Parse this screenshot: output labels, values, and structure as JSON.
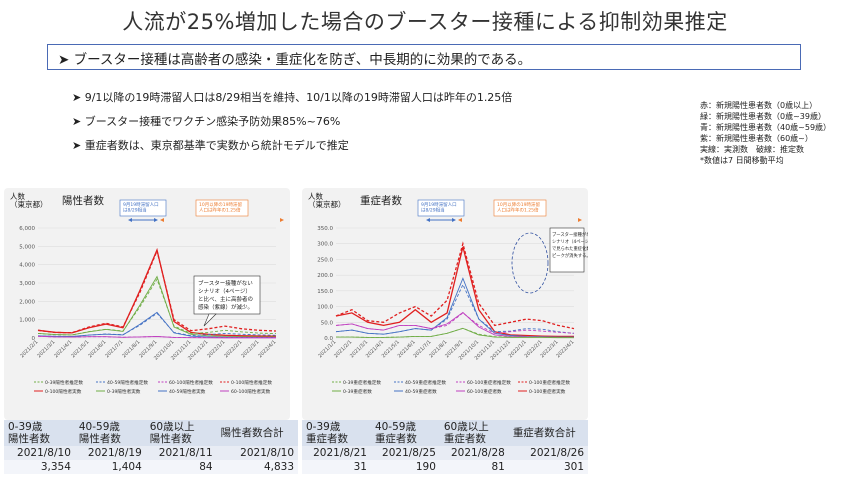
{
  "title": "人流が25%増加した場合のブースター接種による抑制効果推定",
  "banner": "➤ ブースター接種は高齢者の感染・重症化を防ぎ、中長期的に効果的である。",
  "bullets": [
    "9/1以降の19時滞留人口は8/29相当を維持、10/1以降の19時滞留人口は昨年の1.25倍",
    "ブースター接種でワクチン感染予防効果85%~76%",
    "重症者数は、東京都基準で実数から統計モデルで推定"
  ],
  "legend_note": [
    "赤：新規陽性患者数（0歳以上）",
    "緑：新規陽性患者数（0歳~39歳）",
    "青：新規陽性患者数（40歳~59歳）",
    "紫：新規陽性患者数（60歳~）",
    "実線：実測数　破線：推定数",
    "*数値は7 日間移動平均"
  ],
  "colors": {
    "red": "#e02020",
    "green": "#70ad47",
    "blue": "#4472c4",
    "purple": "#c040c0",
    "orange": "#ed7d31"
  },
  "chart_data": [
    {
      "type": "line",
      "title": "陽性者数",
      "ylabel": "人数\n（東京都）",
      "ylim": [
        0,
        6000
      ],
      "yticks": [
        "6,000",
        "5,000",
        "4,000",
        "3,000",
        "2,000",
        "1,000",
        "0"
      ],
      "x": [
        "2021/2/1",
        "2021/3/1",
        "2021/4/1",
        "2021/5/1",
        "2021/6/1",
        "2021/7/1",
        "2021/8/1",
        "2021/9/1",
        "2021/10/1",
        "2021/11/1",
        "2021/12/1",
        "2022/1/1",
        "2022/2/1",
        "2022/3/1",
        "2022/4/1"
      ],
      "annotations": [
        {
          "text": "9月19時滞留人口\nは8/29相当",
          "color": "#4472c4"
        },
        {
          "text": "10月以降の19時滞留\n人口は昨年の1.25倍",
          "color": "#ed7d31"
        },
        {
          "text": "ブースター接種がない\nシナリオ（4ページ）\nと比べ、主に高齢者の\n感染（紫線）が減少。",
          "color": "#222"
        }
      ],
      "series": [
        {
          "name": "0-100陽性者実数",
          "color": "#e02020",
          "dashed": false,
          "values": [
            420,
            310,
            280,
            560,
            760,
            560,
            2600,
            4800,
            900,
            300,
            200,
            150,
            120,
            110,
            100
          ]
        },
        {
          "name": "0-100陽性者推定数",
          "color": "#e02020",
          "dashed": true,
          "values": [
            420,
            300,
            290,
            600,
            800,
            600,
            2500,
            4750,
            1000,
            400,
            500,
            650,
            500,
            420,
            380
          ]
        },
        {
          "name": "0-39陽性者推定数",
          "color": "#70ad47",
          "dashed": true,
          "values": [
            250,
            180,
            170,
            350,
            480,
            380,
            1700,
            3200,
            650,
            250,
            300,
            420,
            330,
            270,
            240
          ]
        },
        {
          "name": "0-39陽性者実数",
          "color": "#70ad47",
          "dashed": false,
          "values": [
            250,
            190,
            170,
            340,
            470,
            360,
            1800,
            3350,
            600,
            200,
            120,
            90,
            70,
            60,
            55
          ]
        },
        {
          "name": "40-59陽性者推定数",
          "color": "#4472c4",
          "dashed": true,
          "values": [
            120,
            90,
            80,
            160,
            220,
            180,
            700,
            1350,
            300,
            130,
            180,
            250,
            200,
            170,
            150
          ]
        },
        {
          "name": "40-59陽性者実数",
          "color": "#4472c4",
          "dashed": false,
          "values": [
            120,
            90,
            80,
            160,
            210,
            170,
            750,
            1400,
            280,
            100,
            60,
            40,
            35,
            30,
            28
          ]
        },
        {
          "name": "60-100陽性者推定数",
          "color": "#c040c0",
          "dashed": true,
          "values": [
            90,
            60,
            50,
            70,
            70,
            40,
            60,
            80,
            30,
            20,
            30,
            40,
            35,
            30,
            28
          ]
        },
        {
          "name": "60-100陽性者実数",
          "color": "#c040c0",
          "dashed": false,
          "values": [
            90,
            60,
            50,
            70,
            70,
            40,
            60,
            84,
            30,
            15,
            10,
            8,
            7,
            6,
            5
          ]
        }
      ],
      "legend": [
        "0-39陽性者推定数",
        "40-59陽性者推定数",
        "60-100陽性者推定数",
        "0-100陽性者推定数",
        "0-100陽性者実数",
        "0-39陽性者実数",
        "40-59陽性者実数",
        "60-100陽性者実数"
      ],
      "table": {
        "headers": [
          "0-39歳\n陽性者数",
          "40-59歳\n陽性者数",
          "60歳以上\n陽性者数",
          "陽性者数合計"
        ],
        "dates": [
          "2021/8/10",
          "2021/8/19",
          "2021/8/11",
          "2021/8/10"
        ],
        "values": [
          "3,354",
          "1,404",
          "84",
          "4,833"
        ]
      }
    },
    {
      "type": "line",
      "title": "重症者数",
      "ylabel": "人数\n（東京都）",
      "ylim": [
        0,
        350
      ],
      "yticks": [
        "350.0",
        "300.0",
        "250.0",
        "200.0",
        "150.0",
        "100.0",
        "50.0",
        "0.0"
      ],
      "x": [
        "2021/1/1",
        "2021/2/1",
        "2021/3/1",
        "2021/4/1",
        "2021/5/1",
        "2021/6/1",
        "2021/7/1",
        "2021/8/1",
        "2021/9/1",
        "2021/10/1",
        "2021/11/1",
        "2021/12/1",
        "2022/1/1",
        "2022/2/1",
        "2022/3/1",
        "2022/4/1"
      ],
      "annotations": [
        {
          "text": "9月19時滞留人口\nは8/29相当",
          "color": "#4472c4"
        },
        {
          "text": "10月以降の19時滞留\n人口は昨年の1.25倍",
          "color": "#ed7d31"
        },
        {
          "text": "ブースター接種がない\nシナリオ（4ページ）\nで見られた重症化数の\nピークが消失する。",
          "color": "#222"
        }
      ],
      "series": [
        {
          "name": "0-100重症者実数",
          "color": "#e02020",
          "dashed": false,
          "values": [
            70,
            80,
            50,
            40,
            50,
            90,
            50,
            80,
            290,
            90,
            20,
            10,
            8,
            6,
            5,
            5
          ]
        },
        {
          "name": "0-100重症者推定数",
          "color": "#e02020",
          "dashed": true,
          "values": [
            70,
            90,
            55,
            50,
            80,
            100,
            70,
            120,
            300,
            110,
            40,
            50,
            60,
            55,
            40,
            30
          ]
        },
        {
          "name": "40-59重症者推定数",
          "color": "#4472c4",
          "dashed": true,
          "values": [
            20,
            25,
            15,
            12,
            20,
            30,
            25,
            60,
            170,
            60,
            20,
            22,
            30,
            28,
            20,
            15
          ]
        },
        {
          "name": "40-59重症者数",
          "color": "#4472c4",
          "dashed": false,
          "values": [
            20,
            25,
            15,
            12,
            20,
            30,
            25,
            65,
            190,
            60,
            15,
            8,
            5,
            4,
            3,
            3
          ]
        },
        {
          "name": "60-100重症者推定数",
          "color": "#c040c0",
          "dashed": true,
          "values": [
            40,
            45,
            30,
            25,
            40,
            40,
            30,
            40,
            80,
            40,
            15,
            20,
            25,
            22,
            18,
            15
          ]
        },
        {
          "name": "60-100重症者数",
          "color": "#c040c0",
          "dashed": false,
          "values": [
            40,
            45,
            30,
            25,
            40,
            40,
            30,
            45,
            81,
            35,
            10,
            5,
            4,
            3,
            2,
            2
          ]
        },
        {
          "name": "0-39重症者推定数",
          "color": "#70ad47",
          "dashed": true,
          "values": [
            3,
            3,
            2,
            2,
            3,
            5,
            5,
            15,
            31,
            12,
            4,
            3,
            3,
            3,
            2,
            2
          ]
        },
        {
          "name": "0-39重症者数",
          "color": "#70ad47",
          "dashed": false,
          "values": [
            3,
            3,
            2,
            2,
            3,
            5,
            5,
            15,
            31,
            10,
            3,
            2,
            2,
            2,
            1,
            1
          ]
        }
      ],
      "legend": [
        "0-39重症者推定数",
        "40-59重症者推定数",
        "60-100重症者推定数",
        "0-100重症者推定数",
        "0-39重症者数",
        "40-59重症者数",
        "60-100重症者数",
        "0-100重症者実数"
      ],
      "table": {
        "headers": [
          "0-39歳\n重症者数",
          "40-59歳\n重症者数",
          "60歳以上\n重症者数",
          "重症者数合計"
        ],
        "dates": [
          "2021/8/21",
          "2021/8/25",
          "2021/8/28",
          "2021/8/26"
        ],
        "values": [
          "31",
          "190",
          "81",
          "301"
        ]
      }
    }
  ]
}
